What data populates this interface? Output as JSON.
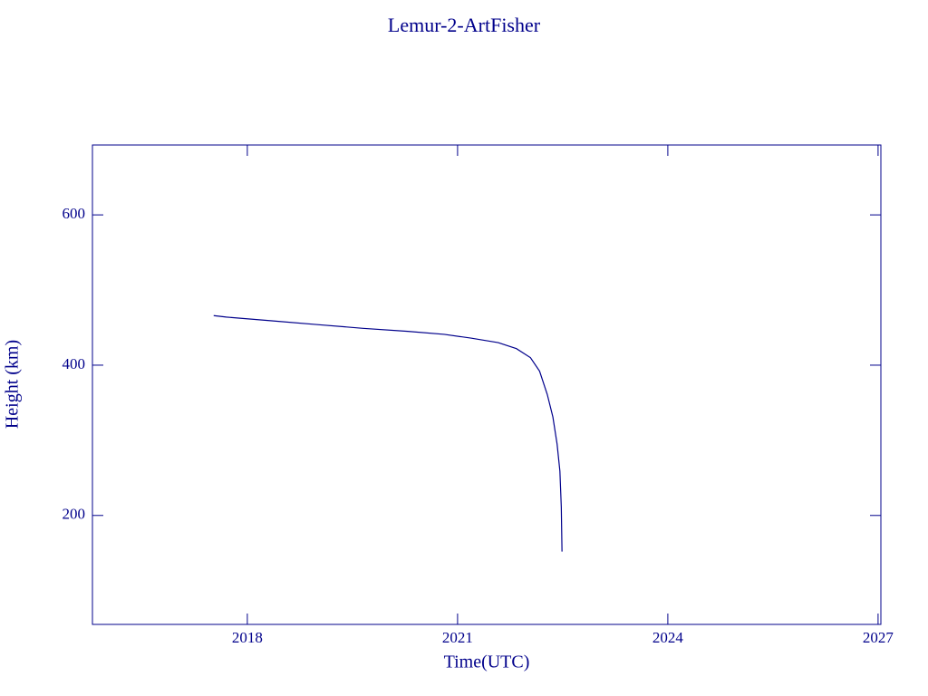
{
  "chart_data": {
    "type": "line",
    "title": "Lemur-2-ArtFisher",
    "xlabel": "Time(UTC)",
    "ylabel": "Height (km)",
    "x": [
      2017.52,
      2017.7,
      2018.35,
      2019.0,
      2019.65,
      2020.29,
      2020.81,
      2021.19,
      2021.58,
      2021.84,
      2022.04,
      2022.17,
      2022.28,
      2022.36,
      2022.42,
      2022.46,
      2022.48,
      2022.49
    ],
    "series": [
      {
        "color": "#00008b",
        "values": [
          466,
          464,
          459,
          454,
          449,
          445,
          441,
          436,
          430,
          422,
          410,
          392,
          361,
          331,
          295,
          259,
          211,
          152
        ]
      }
    ],
    "xlim": [
      2015.79,
      2027.04
    ],
    "xticks": [
      2018,
      2021,
      2024,
      2027
    ],
    "ylim": [
      55,
      693
    ],
    "yticks": [
      200,
      400,
      600
    ]
  }
}
